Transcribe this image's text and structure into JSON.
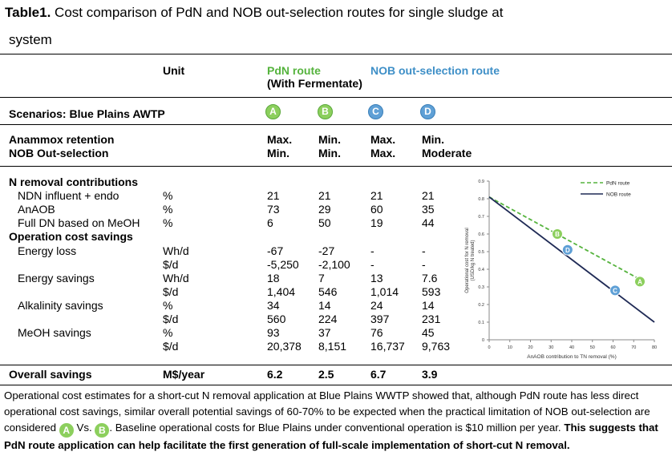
{
  "title": {
    "label": "Table1.",
    "text": " Cost comparison of PdN and NOB out-selection routes for single sludge at",
    "line2": "system"
  },
  "headers": {
    "unit": "Unit",
    "pdn_route": "PdN route",
    "pdn_sub": "(With Fermentate)",
    "nob_route": "NOB out-selection route"
  },
  "scenarios": {
    "label": "Scenarios: Blue Plains AWTP",
    "letters": [
      "A",
      "B",
      "C",
      "D"
    ]
  },
  "retention": {
    "label1": "Anammox retention",
    "label2": "NOB Out-selection",
    "row1": [
      "Max.",
      "Min.",
      "Max.",
      "Min."
    ],
    "row2": [
      "Min.",
      "Min.",
      "Max.",
      "Moderate"
    ]
  },
  "sections": {
    "n_removal": "N removal contributions",
    "op_cost": "Operation cost savings"
  },
  "rows": [
    {
      "label": "NDN influent + endo",
      "unit": "%",
      "v": [
        "21",
        "21",
        "21",
        "21"
      ]
    },
    {
      "label": "AnAOB",
      "unit": "%",
      "v": [
        "73",
        "29",
        "60",
        "35"
      ]
    },
    {
      "label": "Full DN based on MeOH",
      "unit": "%",
      "v": [
        "6",
        "50",
        "19",
        "44"
      ]
    },
    {
      "label": "Energy loss",
      "unit": "Wh/d",
      "v": [
        "-67",
        "-27",
        "-",
        "-"
      ]
    },
    {
      "label": "",
      "unit": "$/d",
      "v": [
        "-5,250",
        "-2,100",
        "-",
        "-"
      ]
    },
    {
      "label": "Energy savings",
      "unit": "Wh/d",
      "v": [
        "18",
        "7",
        "13",
        "7.6"
      ]
    },
    {
      "label": "",
      "unit": "$/d",
      "v": [
        "1,404",
        "546",
        "1,014",
        "593"
      ]
    },
    {
      "label": "Alkalinity savings",
      "unit": "%",
      "v": [
        "34",
        "14",
        "24",
        "14"
      ]
    },
    {
      "label": "",
      "unit": "$/d",
      "v": [
        "560",
        "224",
        "397",
        "231"
      ]
    },
    {
      "label": "MeOH savings",
      "unit": "%",
      "v": [
        "93",
        "37",
        "76",
        "45"
      ]
    },
    {
      "label": "",
      "unit": "$/d",
      "v": [
        "20,378",
        "8,151",
        "16,737",
        "9,763"
      ]
    }
  ],
  "overall": {
    "label": "Overall savings",
    "unit": "M$/year",
    "v": [
      "6.2",
      "2.5",
      "6.7",
      "3.9"
    ]
  },
  "footer": {
    "p1": "Operational cost estimates for a short-cut N removal application at Blue Plains WWTP showed that, although PdN route has less direct operational cost savings, similar overall potential savings of 60-70% to be expected when the practical limitation of NOB out-selection are considered",
    "circle_a": "A",
    "vs": "Vs.",
    "circle_b": "B",
    "p2": ". Baseline operational costs for Blue Plains under conventional operation is $10 million per year.",
    "bold": "This suggests that PdN route application can help facilitate the first generation of full-scale implementation of short-cut N removal."
  },
  "colors": {
    "pdn": "#55b33d",
    "nob": "#3e8fc7",
    "nob_line": "#1f2a55"
  },
  "chart_data": {
    "type": "line",
    "xlabel": "AnAOB contribution to TN removal (%)",
    "ylabel": "Operational cost for N removal (USD/kg N treated)",
    "xlim": [
      0,
      80
    ],
    "ylim": [
      0,
      0.9
    ],
    "xticks": [
      "0",
      "10",
      "20",
      "30",
      "40",
      "50",
      "60",
      "70",
      "80"
    ],
    "yticks": [
      "0",
      "0.1",
      "0.2",
      "0.3",
      "0.4",
      "0.5",
      "0.6",
      "0.7",
      "0.8",
      "0.9"
    ],
    "legend_position": "top-right",
    "series": [
      {
        "name": "PdN route",
        "style": "dashed",
        "color": "#55b33d",
        "x": [
          0,
          75
        ],
        "y": [
          0.81,
          0.33
        ]
      },
      {
        "name": "NOB route",
        "style": "solid",
        "color": "#1f2a55",
        "x": [
          0,
          80
        ],
        "y": [
          0.81,
          0.1
        ]
      }
    ],
    "markers": [
      {
        "label": "B",
        "x": 33,
        "y": 0.6,
        "color": "#8ccf5d"
      },
      {
        "label": "A",
        "x": 73,
        "y": 0.33,
        "color": "#8ccf5d"
      },
      {
        "label": "D",
        "x": 38,
        "y": 0.51,
        "color": "#5fa0d6"
      },
      {
        "label": "C",
        "x": 61,
        "y": 0.28,
        "color": "#5fa0d6"
      }
    ]
  }
}
